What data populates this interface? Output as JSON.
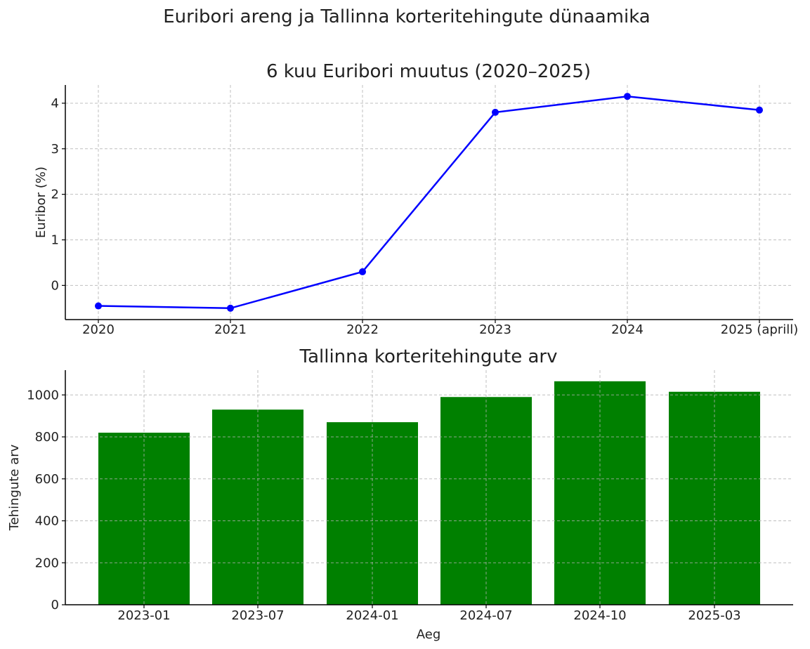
{
  "suptitle": "Euribori areng ja Tallinna korteritehingute dünaamika",
  "chart_data": [
    {
      "type": "line",
      "title": "6 kuu Euribori muutus (2020–2025)",
      "xlabel": "",
      "ylabel": "Euribor (%)",
      "categories": [
        "2020",
        "2021",
        "2022",
        "2023",
        "2024",
        "2025 (aprill)"
      ],
      "series": [
        {
          "values": [
            -0.45,
            -0.5,
            0.3,
            3.8,
            4.15,
            3.85
          ]
        }
      ],
      "ylim": [
        -0.75,
        4.4
      ],
      "yticks": [
        0,
        1,
        2,
        3,
        4
      ],
      "grid": true,
      "color": "#0000ff",
      "marker": "circle"
    },
    {
      "type": "bar",
      "title": "Tallinna korteritehingute arv",
      "xlabel": "Aeg",
      "ylabel": "Tehingute arv",
      "categories": [
        "2023-01",
        "2023-07",
        "2024-01",
        "2024-07",
        "2024-10",
        "2025-03"
      ],
      "values": [
        820,
        930,
        870,
        990,
        1065,
        1015
      ],
      "ylim": [
        0,
        1118
      ],
      "yticks": [
        0,
        200,
        400,
        600,
        800,
        1000
      ],
      "grid": true,
      "color": "#008000"
    }
  ]
}
